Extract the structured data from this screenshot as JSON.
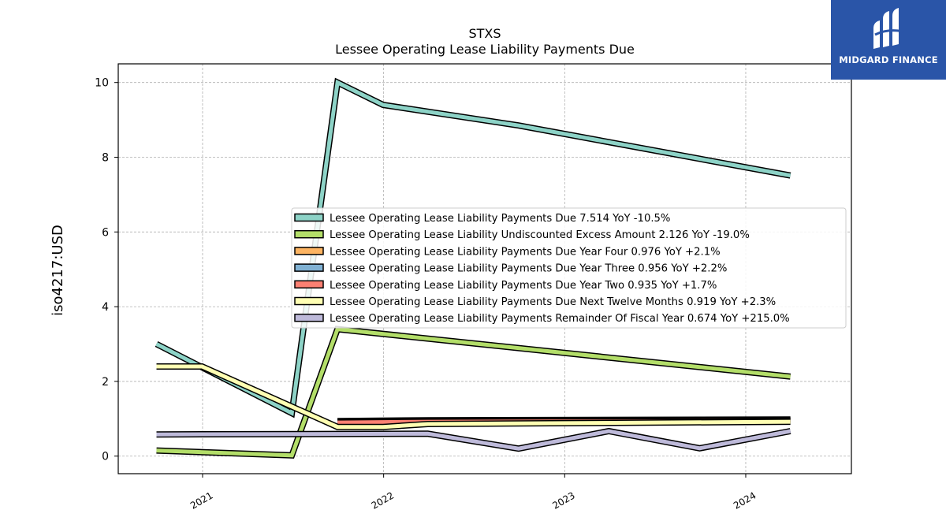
{
  "chart_data": {
    "type": "line",
    "title": "STXS",
    "subtitle": "Lessee Operating Lease Liability Payments Due",
    "xlabel": "",
    "ylabel": "iso4217:USD",
    "x_ticks": [
      "2021",
      "2022",
      "2023",
      "2024"
    ],
    "y_ticks": [
      "0",
      "2",
      "4",
      "6",
      "8",
      "10"
    ],
    "ylim": [
      -0.47,
      10.5
    ],
    "xlim": [
      "2020-07-15",
      "2024-08-01"
    ],
    "grid": true,
    "legend_position": "center-right",
    "series": [
      {
        "name": "Lessee Operating Lease Liability Payments Due",
        "legend": "Lessee Operating Lease Liability Payments Due  7.514 YoY -10.5%",
        "color": "#8dd3c7",
        "points": [
          [
            "2020-09-30",
            3.0
          ],
          [
            "2021-06-30",
            1.15
          ],
          [
            "2021-09-30",
            10.0
          ],
          [
            "2021-12-31",
            9.4
          ],
          [
            "2022-09-30",
            8.85
          ],
          [
            "2024-03-31",
            7.51
          ]
        ]
      },
      {
        "name": "Lessee Operating Lease Liability Undiscounted Excess Amount",
        "legend": "Lessee Operating Lease Liability Undiscounted Excess Amount  2.126 YoY -19.0%",
        "color": "#b3de69",
        "points": [
          [
            "2020-09-30",
            0.15
          ],
          [
            "2021-06-30",
            0.02
          ],
          [
            "2021-09-30",
            3.4
          ],
          [
            "2024-03-31",
            2.13
          ]
        ]
      },
      {
        "name": "Lessee Operating Lease Liability Payments Due Year Four",
        "legend": "Lessee Operating Lease Liability Payments Due Year Four  0.976 YoY +2.1%",
        "color": "#fdb462",
        "points": [
          [
            "2021-09-30",
            0.94
          ],
          [
            "2022-03-31",
            0.96
          ],
          [
            "2024-03-31",
            0.98
          ]
        ]
      },
      {
        "name": "Lessee Operating Lease Liability Payments Due Year Three",
        "legend": "Lessee Operating Lease Liability Payments Due Year Three  0.956 YoY +2.2%",
        "color": "#80b1d3",
        "points": [
          [
            "2021-09-30",
            0.92
          ],
          [
            "2022-03-31",
            0.94
          ],
          [
            "2024-03-31",
            0.96
          ]
        ]
      },
      {
        "name": "Lessee Operating Lease Liability Payments Due Year Two",
        "legend": "Lessee Operating Lease Liability Payments Due Year Two  0.935 YoY +1.7%",
        "color": "#fb8072",
        "points": [
          [
            "2021-09-30",
            0.9
          ],
          [
            "2022-03-31",
            0.92
          ],
          [
            "2024-03-31",
            0.94
          ]
        ]
      },
      {
        "name": "Lessee Operating Lease Liability Payments Due Next Twelve Months",
        "legend": "Lessee Operating Lease Liability Payments Due Next Twelve Months  0.919 YoY +2.3%",
        "color": "#ffffb3",
        "points": [
          [
            "2020-09-30",
            2.4
          ],
          [
            "2020-12-31",
            2.4
          ],
          [
            "2021-09-30",
            0.78
          ],
          [
            "2021-12-31",
            0.78
          ],
          [
            "2022-03-31",
            0.86
          ],
          [
            "2024-03-31",
            0.92
          ]
        ]
      },
      {
        "name": "Lessee Operating Lease Liability Payments Remainder Of Fiscal Year",
        "legend": "Lessee Operating Lease Liability Payments Remainder Of Fiscal Year  0.674 YoY +215.0%",
        "color": "#bebada",
        "points": [
          [
            "2020-09-30",
            0.58
          ],
          [
            "2022-03-31",
            0.6
          ],
          [
            "2022-09-30",
            0.2
          ],
          [
            "2023-03-31",
            0.67
          ],
          [
            "2023-09-30",
            0.21
          ],
          [
            "2024-03-31",
            0.67
          ]
        ]
      }
    ]
  },
  "logo": {
    "text": "MIDGARD FINANCE",
    "icon": "midgard-logo-icon",
    "color": "#2a55a8"
  }
}
